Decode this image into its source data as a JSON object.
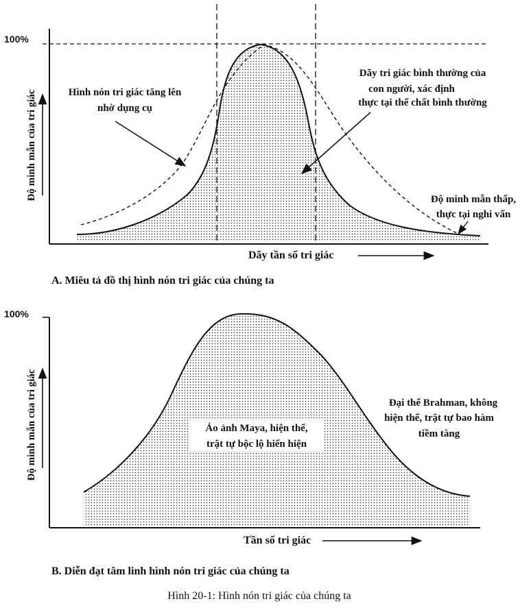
{
  "panel_a": {
    "pct_label": "100%",
    "y_axis_label": "Độ minh mẫn của tri giác",
    "x_axis_label": "Dãy tần số tri giác",
    "callout_left": [
      "Hình nón tri giác tăng lên",
      "nhờ dụng cụ"
    ],
    "callout_right": [
      "Dãy tri giác bình thường của",
      "con người, xác định",
      "thực tại thể chất bình thường"
    ],
    "callout_low": [
      "Độ minh mẫn thấp,",
      "thực tại nghi vấn"
    ],
    "caption": "A. Miêu tả đồ thị hình nón tri giác của chúng ta"
  },
  "panel_b": {
    "pct_label": "100%",
    "y_axis_label": "Độ minh mẫn của tri giác",
    "x_axis_label": "Tần số tri giác",
    "center_text": [
      "Ảo ảnh Maya, hiện thể,",
      "trật tự bộc lộ hiển hiện"
    ],
    "right_text": [
      "Đại thể Brahman, không",
      "hiện thể, trật tự bao hàm",
      "tiềm tàng"
    ],
    "caption": "B. Diễn đạt tâm linh hình nón tri giác của chúng ta"
  },
  "figure_caption": "Hình 20-1: Hình nón tri giác của chúng ta"
}
